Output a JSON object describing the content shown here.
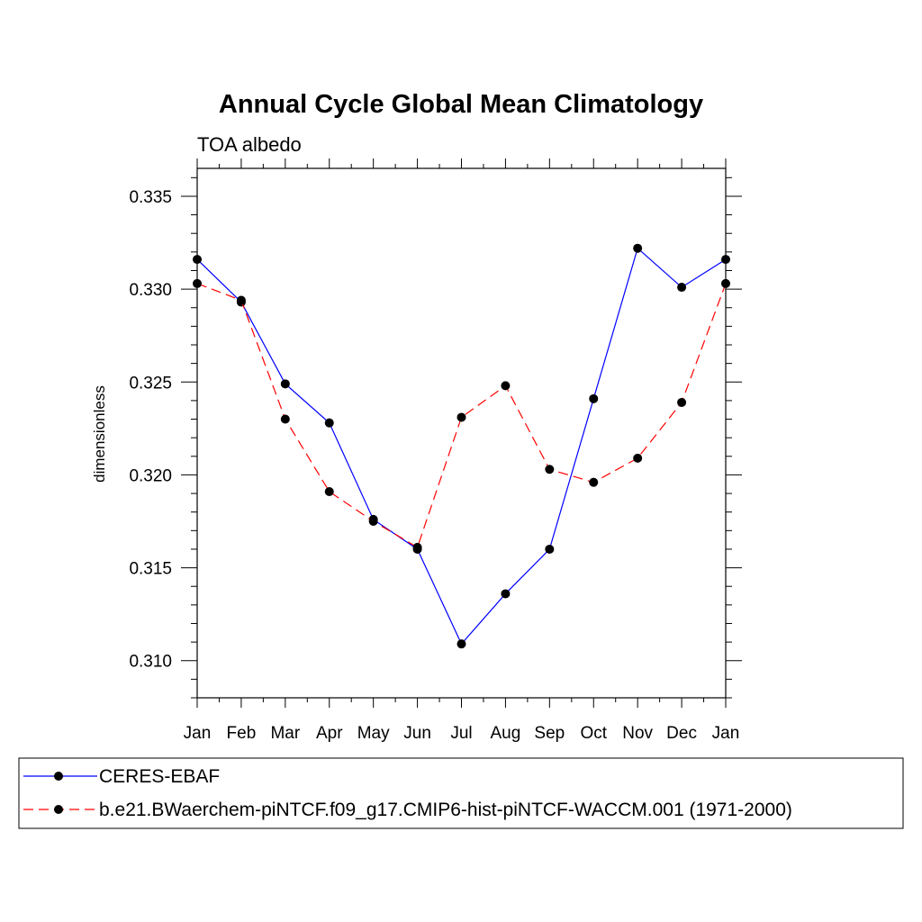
{
  "chart_data": {
    "type": "line",
    "title": "Annual Cycle Global Mean Climatology",
    "subtitle": "TOA albedo",
    "xlabel": "",
    "ylabel": "dimensionless",
    "categories": [
      "Jan",
      "Feb",
      "Mar",
      "Apr",
      "May",
      "Jun",
      "Jul",
      "Aug",
      "Sep",
      "Oct",
      "Nov",
      "Dec",
      "Jan"
    ],
    "ylim": [
      0.308,
      0.3365
    ],
    "yticks": [
      0.31,
      0.315,
      0.32,
      0.325,
      0.33,
      0.335
    ],
    "ytick_labels": [
      "0.310",
      "0.315",
      "0.320",
      "0.325",
      "0.330",
      "0.335"
    ],
    "grid": false,
    "legend_position": "bottom",
    "series": [
      {
        "name": "CERES-EBAF",
        "color": "#0000ff",
        "line_style": "solid",
        "marker": "circle",
        "values": [
          0.3316,
          0.3293,
          0.3249,
          0.3228,
          0.3176,
          0.316,
          0.3109,
          0.3136,
          0.316,
          0.3241,
          0.3322,
          0.3301,
          0.3316
        ]
      },
      {
        "name": "b.e21.BWaerchem-piNTCF.f09_g17.CMIP6-hist-piNTCF-WACCM.001 (1971-2000)",
        "color": "#ff0000",
        "line_style": "dashed",
        "marker": "circle",
        "values": [
          0.3303,
          0.3294,
          0.323,
          0.3191,
          0.3175,
          0.3161,
          0.3231,
          0.3248,
          0.3203,
          0.3196,
          0.3209,
          0.3239,
          0.3303
        ]
      }
    ]
  }
}
